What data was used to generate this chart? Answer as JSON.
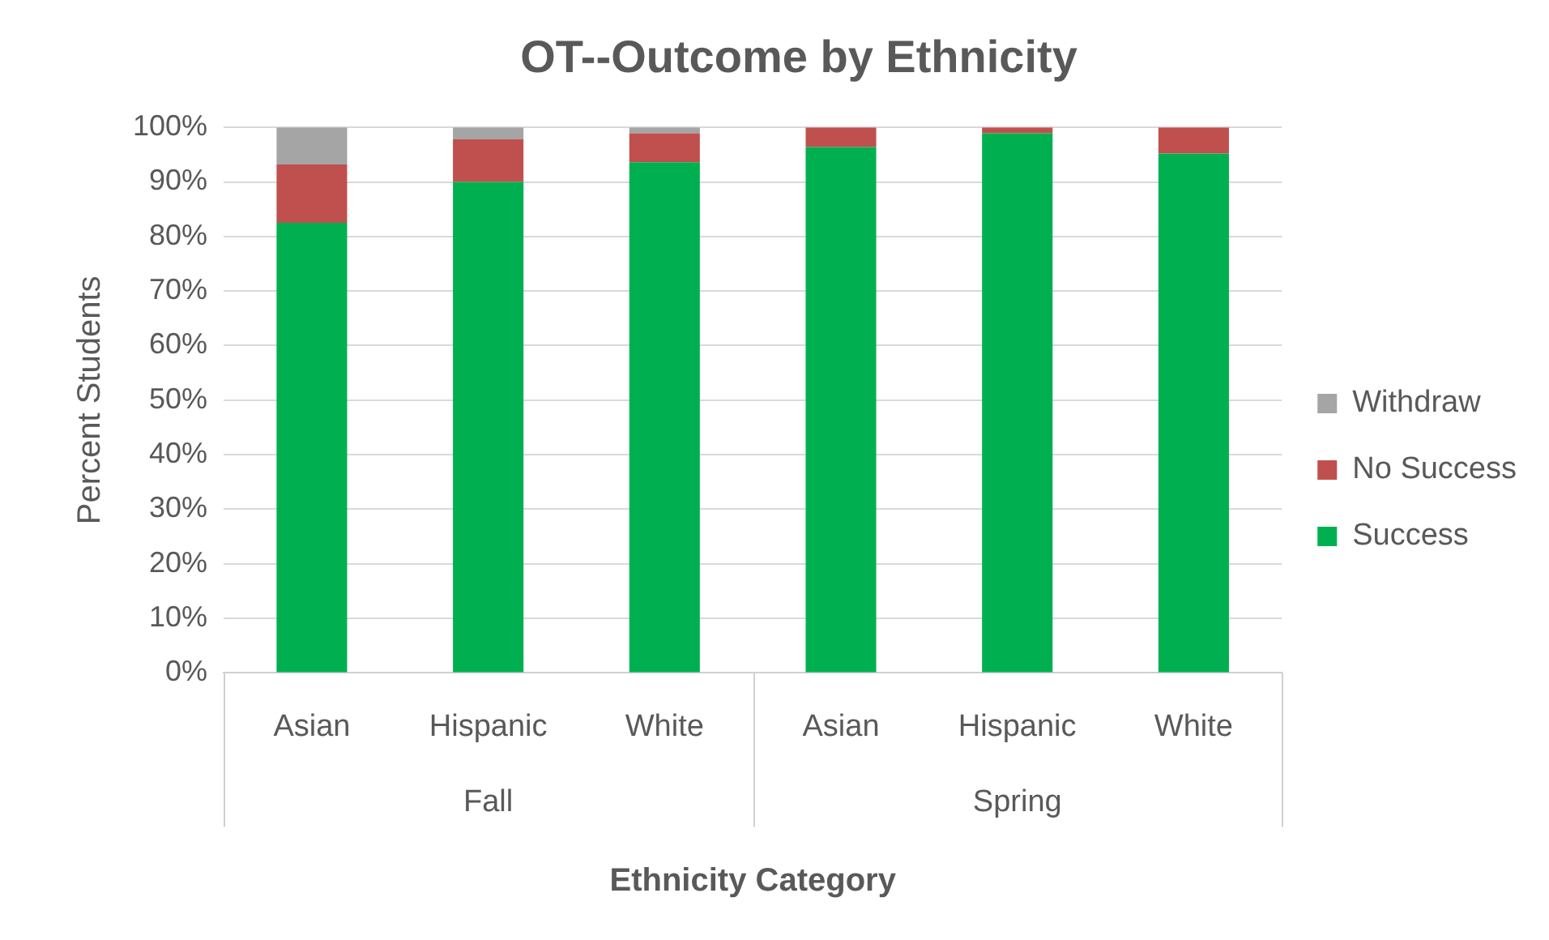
{
  "chart_data": {
    "type": "bar",
    "title": "OT--Outcome by Ethnicity",
    "xlabel": "Ethnicity Category",
    "ylabel": "Percent Students",
    "categories": [
      "Asian",
      "Hispanic",
      "White",
      "Asian",
      "Hispanic",
      "White"
    ],
    "annotations": [
      "Fall",
      "Spring"
    ],
    "stacked": true,
    "series": [
      {
        "name": "Success",
        "color": "#00b050",
        "values": [
          82.5,
          90,
          93.6,
          96.4,
          98.9,
          95.2
        ]
      },
      {
        "name": "No Success",
        "color": "#c0504d",
        "values": [
          10.7,
          7.8,
          5.3,
          3.6,
          1.1,
          4.8
        ]
      },
      {
        "name": "Withdraw",
        "color": "#a5a5a5",
        "values": [
          6.8,
          2.2,
          1.1,
          null,
          null,
          null
        ]
      }
    ],
    "ylim": [
      0,
      100
    ],
    "yticks": [
      {
        "value": 0,
        "label": "0%"
      },
      {
        "value": 10,
        "label": "10%"
      },
      {
        "value": 20,
        "label": "20%"
      },
      {
        "value": 30,
        "label": "30%"
      },
      {
        "value": 40,
        "label": "40%"
      },
      {
        "value": 50,
        "label": "50%"
      },
      {
        "value": 60,
        "label": "60%"
      },
      {
        "value": 70,
        "label": "70%"
      },
      {
        "value": 80,
        "label": "80%"
      },
      {
        "value": 90,
        "label": "90%"
      },
      {
        "value": 100,
        "label": "100%"
      }
    ],
    "grid": "y",
    "legend": "right"
  }
}
